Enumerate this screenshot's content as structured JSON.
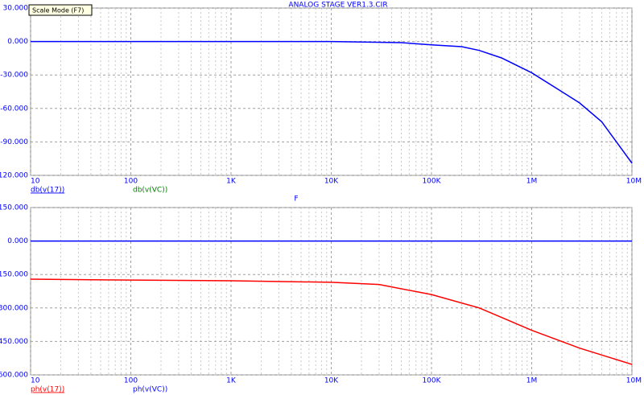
{
  "title": "ANALOG STAGE VER1.3.CIR",
  "tooltip": "Scale Mode (F7)",
  "xlabel": "F",
  "chart_data": [
    {
      "type": "line",
      "log_x": true,
      "grid": true,
      "xlim": [
        10,
        10000000
      ],
      "xticks": [
        10,
        100,
        {
          "value": 1000,
          "label": "1K"
        },
        {
          "value": 10000,
          "label": "10K"
        },
        {
          "value": 100000,
          "label": "100K"
        },
        {
          "value": 1000000,
          "label": "1M"
        },
        {
          "value": 10000000,
          "label": "10M"
        }
      ],
      "ylim": [
        -120,
        30
      ],
      "yticks": [
        {
          "value": 30,
          "label": "30.000"
        },
        {
          "value": 0,
          "label": "0.000"
        },
        {
          "value": -30,
          "label": "-30.000"
        },
        {
          "value": -60,
          "label": "-60.000"
        },
        {
          "value": -90,
          "label": "-90.000"
        },
        {
          "value": -120,
          "label": "-120.000"
        }
      ],
      "x": [
        10,
        100,
        1000,
        10000,
        50000,
        100000,
        200000,
        300000,
        500000,
        1000000,
        2000000,
        3000000,
        5000000,
        10000000
      ],
      "series": [
        {
          "name": "db(v(17))",
          "color": "#0000ff",
          "values": [
            0,
            0,
            0,
            0,
            -1,
            -3,
            -4.6,
            -8,
            -14.7,
            -28,
            -45,
            -55,
            -72,
            -109
          ]
        },
        {
          "name": "db(v(VC))",
          "color": "#008000",
          "values": [
            null,
            null,
            null,
            null,
            null,
            null,
            null,
            null,
            null,
            null,
            null,
            null,
            null,
            null
          ]
        }
      ]
    },
    {
      "type": "line",
      "log_x": true,
      "grid": true,
      "xlim": [
        10,
        10000000
      ],
      "xticks": [
        10,
        100,
        {
          "value": 1000,
          "label": "1K"
        },
        {
          "value": 10000,
          "label": "10K"
        },
        {
          "value": 100000,
          "label": "100K"
        },
        {
          "value": 1000000,
          "label": "1M"
        },
        {
          "value": 10000000,
          "label": "10M"
        }
      ],
      "ylim": [
        -600,
        150
      ],
      "yticks": [
        {
          "value": 150,
          "label": "150.000"
        },
        {
          "value": 0,
          "label": "0.000"
        },
        {
          "value": -150,
          "label": "-150.000"
        },
        {
          "value": -300,
          "label": "-300.000"
        },
        {
          "value": -450,
          "label": "-450.000"
        },
        {
          "value": -600,
          "label": "-600.000"
        }
      ],
      "x": [
        10,
        100,
        1000,
        10000,
        30000,
        100000,
        300000,
        1000000,
        3000000,
        10000000
      ],
      "series": [
        {
          "name": "ph(v(17))",
          "color": "#ff0000",
          "values": [
            -171,
            -175,
            -178,
            -185,
            -195,
            -240,
            -300,
            -400,
            -480,
            -553
          ]
        },
        {
          "name": "ph(v(VC))",
          "color": "#0000ff",
          "values": [
            0,
            0,
            0,
            0,
            0,
            0,
            0,
            0,
            0,
            0
          ]
        }
      ]
    }
  ]
}
